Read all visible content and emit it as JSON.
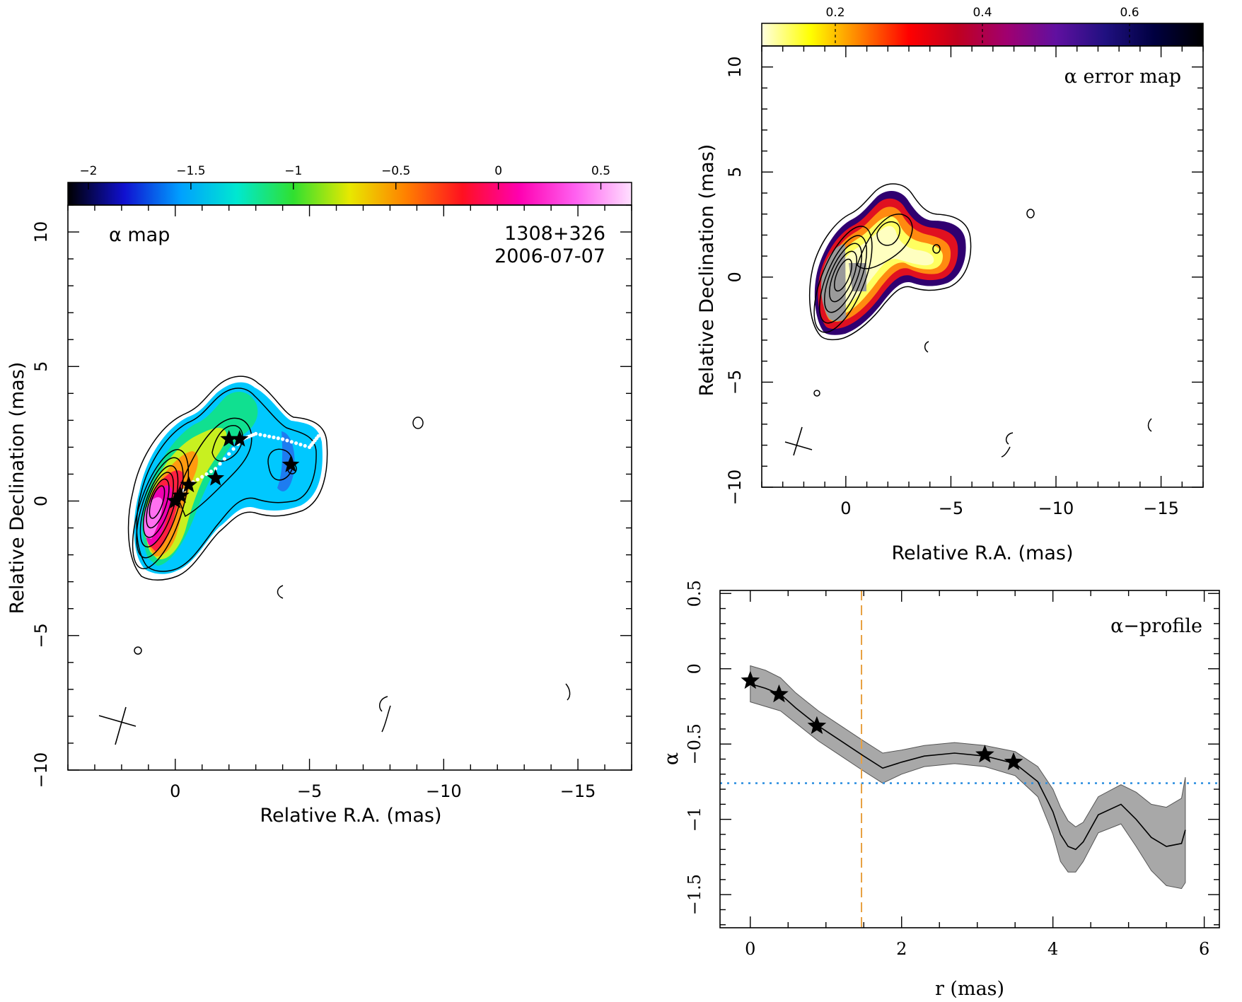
{
  "alpha_map": {
    "label": "α map",
    "source": "1308+326",
    "date": "2006-07-07",
    "xlabel": "Relative R.A. (mas)",
    "ylabel": "Relative Declination (mas)",
    "colorbar_ticks": [
      "−2",
      "−1.5",
      "−1",
      "−0.5",
      "0",
      "0.5"
    ],
    "colors": [
      "#000000",
      "#1010d0",
      "#00a0ff",
      "#00e8d0",
      "#30e030",
      "#e8e800",
      "#ff8000",
      "#ff1020",
      "#ff00b0",
      "#ff60f0",
      "#ffe0ff"
    ]
  },
  "error_map": {
    "label": "α error map",
    "xlabel": "Relative R.A. (mas)",
    "ylabel": "Relative Declination (mas)",
    "colorbar_ticks": [
      "0.2",
      "0.4",
      "0.6"
    ],
    "colors": [
      "#ffffe0",
      "#ffff00",
      "#ff8000",
      "#ff0000",
      "#c00020",
      "#a00070",
      "#6010a0",
      "#201080",
      "#000040",
      "#000000"
    ]
  },
  "profile": {
    "label": "α−profile",
    "xlabel": "r (mas)",
    "ylabel": "α",
    "star_color": "#000000",
    "band_color": "#a8a8a8",
    "vline_color": "#e8a040",
    "hline_color": "#3090e0"
  },
  "chart_data": [
    {
      "type": "heatmap",
      "name": "alpha_map",
      "x_range": [
        4,
        -17
      ],
      "y_range": [
        -10,
        11
      ],
      "x_ticks": [
        0,
        -5,
        -10,
        -15
      ],
      "x_tick_labels": [
        "0",
        "−5",
        "−10",
        "−15"
      ],
      "y_ticks": [
        -10,
        -5,
        0,
        5,
        10
      ],
      "y_tick_labels": [
        "−10",
        "−5",
        "0",
        "5",
        "10"
      ],
      "color_range": [
        -2.1,
        0.65
      ],
      "components_xy": [
        [
          0,
          0
        ],
        [
          -0.2,
          0.2
        ],
        [
          -0.5,
          0.6
        ],
        [
          -1.5,
          0.85
        ],
        [
          -2.0,
          2.3
        ],
        [
          -2.4,
          2.3
        ],
        [
          -4.3,
          1.35
        ]
      ],
      "ridge_xy": [
        [
          0,
          0
        ],
        [
          -0.5,
          0.6
        ],
        [
          -1.5,
          1.2
        ],
        [
          -2.5,
          2.3
        ],
        [
          -3.0,
          2.5
        ],
        [
          -4.0,
          2.3
        ],
        [
          -5.0,
          2.0
        ],
        [
          -5.4,
          2.5
        ]
      ]
    },
    {
      "type": "heatmap",
      "name": "error_map",
      "x_range": [
        4,
        -17
      ],
      "y_range": [
        -10,
        11
      ],
      "x_ticks": [
        0,
        -5,
        -10,
        -15
      ],
      "x_tick_labels": [
        "0",
        "−5",
        "−10",
        "−15"
      ],
      "y_ticks": [
        -10,
        -5,
        0,
        5,
        10
      ],
      "y_tick_labels": [
        "−10",
        "−5",
        "0",
        "5",
        "10"
      ],
      "color_range": [
        0.1,
        0.7
      ],
      "color_ticks": [
        0.2,
        0.4,
        0.6
      ]
    },
    {
      "type": "line",
      "name": "alpha_profile",
      "xlim": [
        -0.4,
        6.2
      ],
      "ylim": [
        -1.72,
        0.52
      ],
      "x_ticks": [
        0,
        2,
        4,
        6
      ],
      "x_tick_labels": [
        "0",
        "2",
        "4",
        "6"
      ],
      "y_ticks": [
        0.5,
        0,
        -0.5,
        -1,
        -1.5
      ],
      "y_tick_labels": [
        "0.5",
        "0",
        "−0.5",
        "−1",
        "−1.5"
      ],
      "x": [
        0,
        0.2,
        0.4,
        0.6,
        0.9,
        1.2,
        1.5,
        1.75,
        2.0,
        2.3,
        2.7,
        3.1,
        3.5,
        3.8,
        4.0,
        4.1,
        4.2,
        4.3,
        4.4,
        4.6,
        4.9,
        5.1,
        5.3,
        5.5,
        5.7,
        5.75
      ],
      "y": [
        -0.1,
        -0.13,
        -0.17,
        -0.26,
        -0.38,
        -0.48,
        -0.58,
        -0.66,
        -0.62,
        -0.58,
        -0.56,
        -0.58,
        -0.63,
        -0.75,
        -0.95,
        -1.1,
        -1.18,
        -1.2,
        -1.15,
        -0.97,
        -0.9,
        -1.0,
        -1.12,
        -1.18,
        -1.16,
        -1.07
      ],
      "err": [
        0.12,
        0.12,
        0.11,
        0.1,
        0.1,
        0.1,
        0.1,
        0.1,
        0.08,
        0.07,
        0.07,
        0.07,
        0.08,
        0.1,
        0.15,
        0.18,
        0.17,
        0.15,
        0.13,
        0.12,
        0.13,
        0.18,
        0.22,
        0.26,
        0.3,
        0.35
      ],
      "stars": [
        [
          0,
          -0.08
        ],
        [
          0.38,
          -0.17
        ],
        [
          0.88,
          -0.38
        ],
        [
          3.1,
          -0.57
        ],
        [
          3.48,
          -0.62
        ]
      ],
      "vline_x": 1.47,
      "hline_y": -0.76
    }
  ]
}
